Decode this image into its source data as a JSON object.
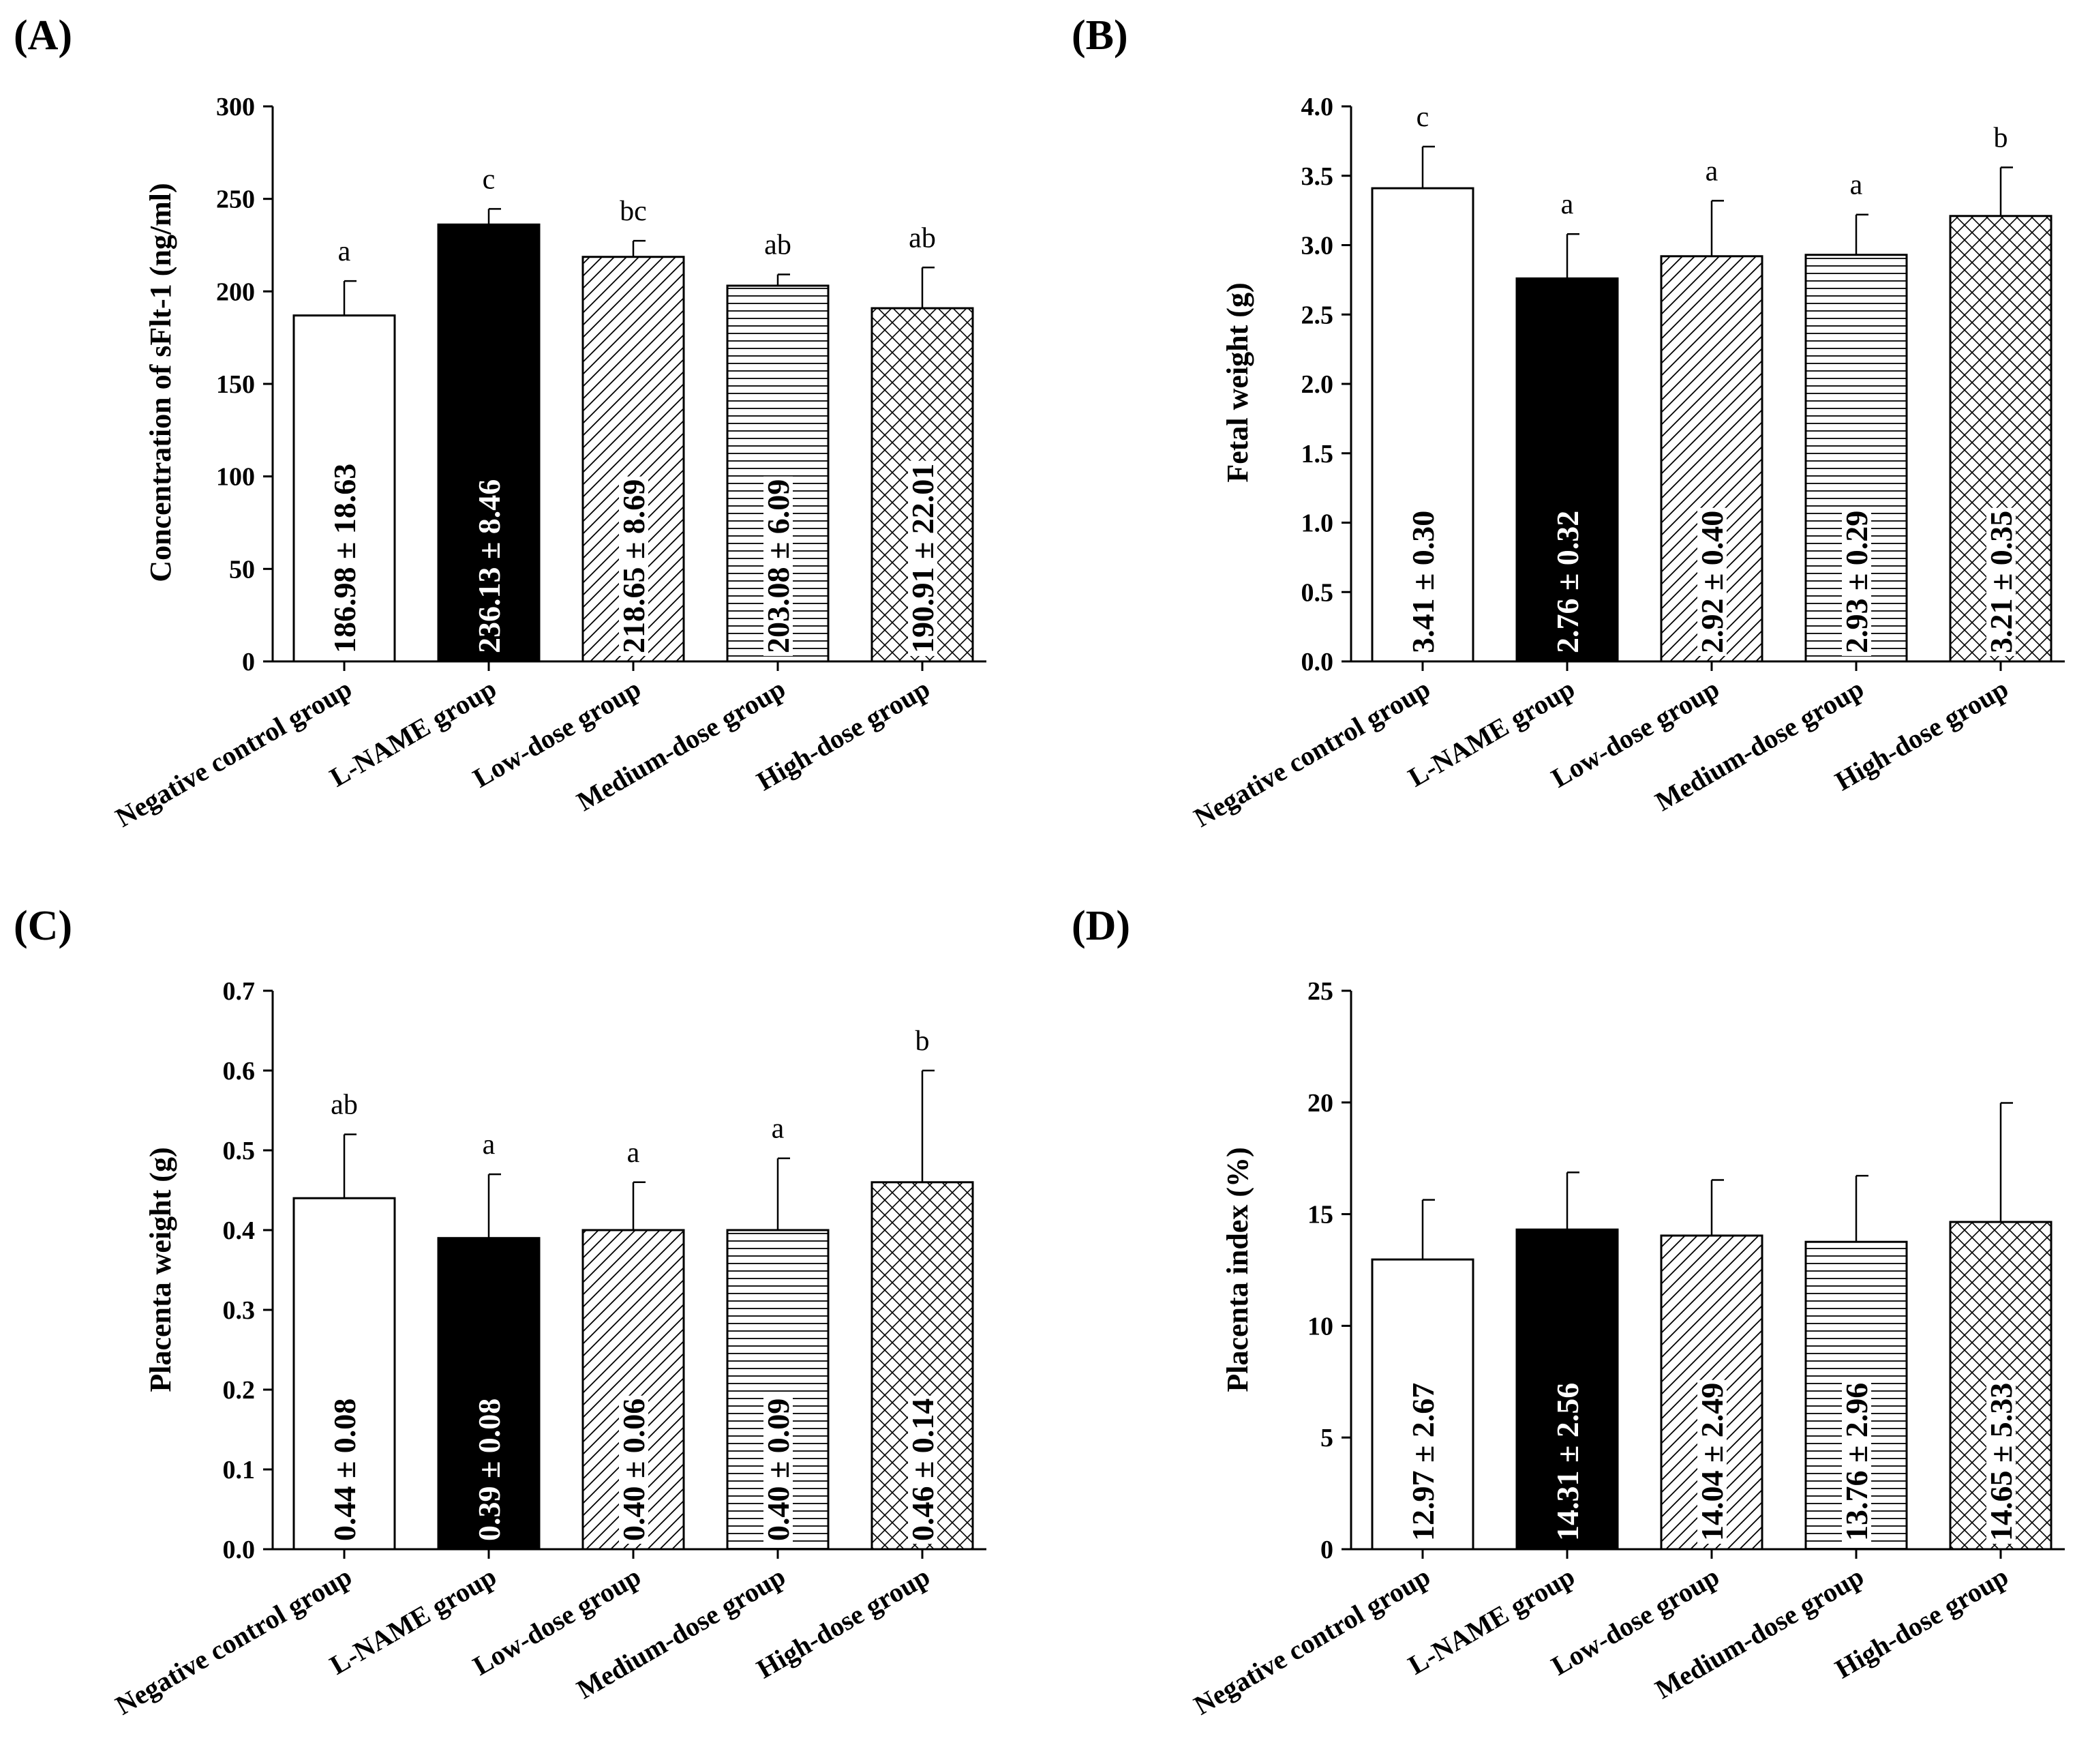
{
  "chart_data": [
    {
      "type": "bar",
      "panel": "(A)",
      "categories": [
        "Negative control group",
        "L-NAME group",
        "Low-dose group",
        "Medium-dose group",
        "High-dose group"
      ],
      "values": [
        186.98,
        236.13,
        218.65,
        203.08,
        190.91
      ],
      "errors": [
        18.63,
        8.46,
        8.69,
        6.09,
        22.01
      ],
      "value_labels": [
        "186.98 ± 18.63",
        "236.13 ± 8.46",
        "218.65 ± 8.69",
        "203.08 ± 6.09",
        "190.91 ± 22.01"
      ],
      "significance": [
        "a",
        "c",
        "bc",
        "ab",
        "ab"
      ],
      "ylabel": "Concentration of sFlt-1 (ng/ml)",
      "ylim": [
        0,
        300
      ],
      "yticks": [
        "0",
        "50",
        "100",
        "150",
        "200",
        "250",
        "300"
      ]
    },
    {
      "type": "bar",
      "panel": "(B)",
      "categories": [
        "Negative control group",
        "L-NAME group",
        "Low-dose group",
        "Medium-dose group",
        "High-dose group"
      ],
      "values": [
        3.41,
        2.76,
        2.92,
        2.93,
        3.21
      ],
      "errors": [
        0.3,
        0.32,
        0.4,
        0.29,
        0.35
      ],
      "value_labels": [
        "3.41 ± 0.30",
        "2.76 ± 0.32",
        "2.92 ± 0.40",
        "2.93 ± 0.29",
        "3.21 ± 0.35"
      ],
      "significance": [
        "c",
        "a",
        "a",
        "a",
        "b"
      ],
      "ylabel": "Fetal weight (g)",
      "ylim": [
        0,
        4.0
      ],
      "yticks": [
        "0.0",
        "0.5",
        "1.0",
        "1.5",
        "2.0",
        "2.5",
        "3.0",
        "3.5",
        "4.0"
      ]
    },
    {
      "type": "bar",
      "panel": "(C)",
      "categories": [
        "Negative control group",
        "L-NAME group",
        "Low-dose group",
        "Medium-dose group",
        "High-dose group"
      ],
      "values": [
        0.44,
        0.39,
        0.4,
        0.4,
        0.46
      ],
      "errors": [
        0.08,
        0.08,
        0.06,
        0.09,
        0.14
      ],
      "value_labels": [
        "0.44 ± 0.08",
        "0.39 ± 0.08",
        "0.40 ± 0.06",
        "0.40 ± 0.09",
        "0.46 ± 0.14"
      ],
      "significance": [
        "ab",
        "a",
        "a",
        "a",
        "b"
      ],
      "ylabel": "Placenta weight (g)",
      "ylim": [
        0,
        0.7
      ],
      "yticks": [
        "0.0",
        "0.1",
        "0.2",
        "0.3",
        "0.4",
        "0.5",
        "0.6",
        "0.7"
      ]
    },
    {
      "type": "bar",
      "panel": "(D)",
      "categories": [
        "Negative control group",
        "L-NAME group",
        "Low-dose group",
        "Medium-dose group",
        "High-dose group"
      ],
      "values": [
        12.97,
        14.31,
        14.04,
        13.76,
        14.65
      ],
      "errors": [
        2.67,
        2.56,
        2.49,
        2.96,
        5.33
      ],
      "value_labels": [
        "12.97 ± 2.67",
        "14.31 ± 2.56",
        "14.04 ± 2.49",
        "13.76 ± 2.96",
        "14.65 ± 5.33"
      ],
      "significance": [],
      "ylabel": "Placenta index (%)",
      "ylim": [
        0,
        25
      ],
      "yticks": [
        "0",
        "5",
        "10",
        "15",
        "20",
        "25"
      ]
    }
  ],
  "fills": [
    "white",
    "black",
    "diagonal-hatch",
    "horizontal-lines",
    "cross-hatch"
  ],
  "colors": {
    "ink": "#000000",
    "background": "#ffffff"
  }
}
